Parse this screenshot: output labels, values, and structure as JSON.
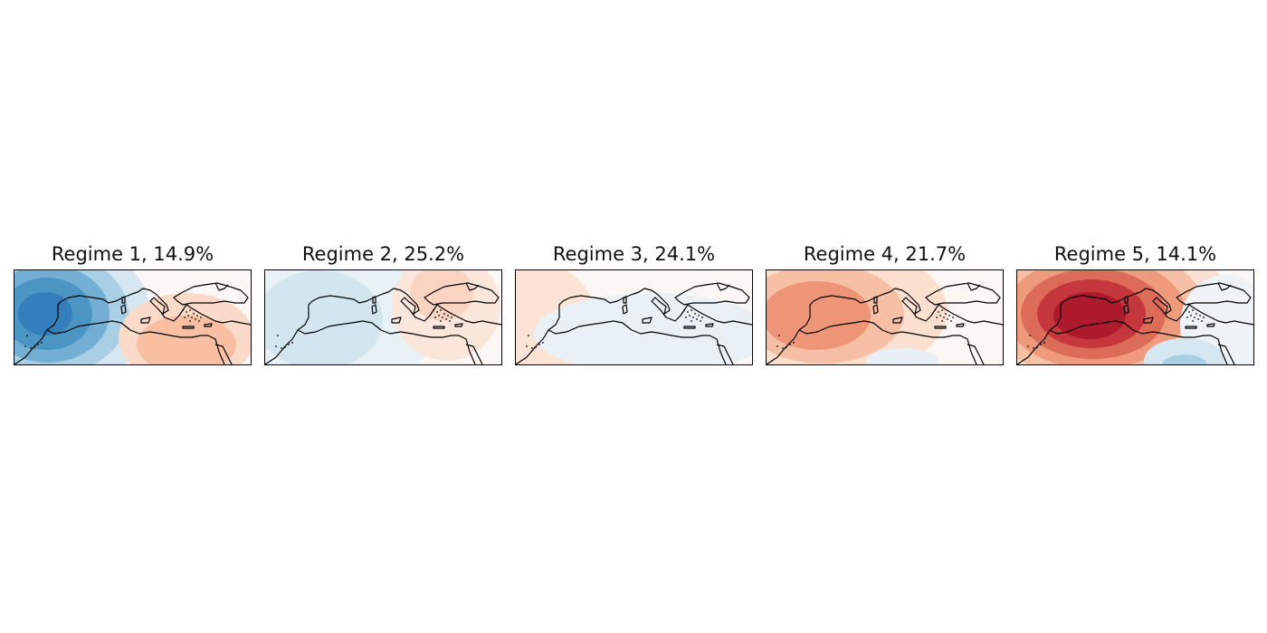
{
  "panels": [
    {
      "title": "Regime 1, 14.9%",
      "blobs": [
        {
          "cx": 40,
          "cy": 48,
          "rx": 110,
          "ry": 85,
          "color": "#d6e7f1"
        },
        {
          "cx": 38,
          "cy": 48,
          "rx": 88,
          "ry": 68,
          "color": "#a9cfe5"
        },
        {
          "cx": 37,
          "cy": 48,
          "rx": 68,
          "ry": 54,
          "color": "#73afd4"
        },
        {
          "cx": 36,
          "cy": 48,
          "rx": 50,
          "ry": 40,
          "color": "#4b95c5"
        },
        {
          "cx": 34,
          "cy": 48,
          "rx": 30,
          "ry": 24,
          "color": "#337ebb"
        },
        {
          "cx": 190,
          "cy": 75,
          "rx": 75,
          "ry": 50,
          "color": "#fcdac9"
        },
        {
          "cx": 190,
          "cy": 82,
          "rx": 55,
          "ry": 32,
          "color": "#f8bfa3"
        }
      ]
    },
    {
      "title": "Regime 2, 25.2%",
      "blobs": [
        {
          "cx": 80,
          "cy": 55,
          "rx": 120,
          "ry": 70,
          "color": "#e8f1f6"
        },
        {
          "cx": 60,
          "cy": 55,
          "rx": 70,
          "ry": 55,
          "color": "#d3e6f0"
        },
        {
          "cx": 200,
          "cy": 40,
          "rx": 60,
          "ry": 60,
          "color": "#fbe6dc"
        },
        {
          "cx": 195,
          "cy": 25,
          "rx": 35,
          "ry": 30,
          "color": "#fad4c0"
        }
      ]
    },
    {
      "title": "Regime 3, 24.1%",
      "blobs": [
        {
          "cx": 20,
          "cy": 60,
          "rx": 70,
          "ry": 70,
          "color": "#fbe3d6"
        },
        {
          "cx": 150,
          "cy": 70,
          "rx": 130,
          "ry": 45,
          "color": "#e9f1f6"
        }
      ]
    },
    {
      "title": "Regime 4, 21.7%",
      "blobs": [
        {
          "cx": 70,
          "cy": 45,
          "rx": 130,
          "ry": 75,
          "color": "#fbe0d0"
        },
        {
          "cx": 62,
          "cy": 48,
          "rx": 90,
          "ry": 55,
          "color": "#f7bfa3"
        },
        {
          "cx": 55,
          "cy": 50,
          "rx": 60,
          "ry": 38,
          "color": "#ee9577"
        },
        {
          "cx": 150,
          "cy": 100,
          "rx": 40,
          "ry": 14,
          "color": "#e7f0f6"
        }
      ]
    },
    {
      "title": "Regime 5, 14.1%",
      "blobs": [
        {
          "cx": 90,
          "cy": 45,
          "rx": 150,
          "ry": 90,
          "color": "#fbe1d3"
        },
        {
          "cx": 88,
          "cy": 46,
          "rx": 120,
          "ry": 75,
          "color": "#f7bfa3"
        },
        {
          "cx": 86,
          "cy": 47,
          "rx": 100,
          "ry": 62,
          "color": "#ef9a7b"
        },
        {
          "cx": 84,
          "cy": 48,
          "rx": 80,
          "ry": 50,
          "color": "#dc6b58"
        },
        {
          "cx": 82,
          "cy": 48,
          "rx": 60,
          "ry": 38,
          "color": "#c6363d"
        },
        {
          "cx": 80,
          "cy": 50,
          "rx": 40,
          "ry": 26,
          "color": "#ad1a2c"
        },
        {
          "cx": 230,
          "cy": 60,
          "rx": 50,
          "ry": 55,
          "color": "#edf3f7"
        },
        {
          "cx": 185,
          "cy": 100,
          "rx": 45,
          "ry": 25,
          "color": "#d6e7f1"
        },
        {
          "cx": 185,
          "cy": 105,
          "rx": 25,
          "ry": 12,
          "color": "#a9cfe5"
        }
      ]
    }
  ]
}
